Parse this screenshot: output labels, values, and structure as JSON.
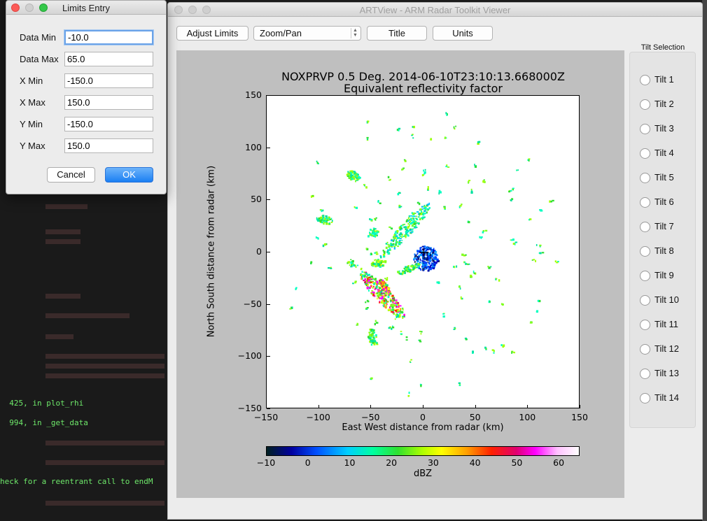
{
  "terminal": {
    "lines": [
      "  425, in plot_rhi",
      "  994, in _get_data",
      "heck for a reentrant call to endM"
    ]
  },
  "main_window": {
    "title": "ARTView - ARM Radar Toolkit Viewer",
    "toolbar": {
      "adjust_limits_label": "Adjust Limits",
      "zoom_select_value": "Zoom/Pan",
      "title_label": "Title",
      "units_label": "Units"
    },
    "tilt_selection": {
      "title": "Tilt Selection",
      "items": [
        "Tilt 1",
        "Tilt 2",
        "Tilt 3",
        "Tilt 4",
        "Tilt 5",
        "Tilt 6",
        "Tilt 7",
        "Tilt 8",
        "Tilt 9",
        "Tilt 10",
        "Tilt 11",
        "Tilt 12",
        "Tilt 13",
        "Tilt 14"
      ]
    }
  },
  "chart_data": {
    "type": "heatmap",
    "title": "NOXPRVP 0.5 Deg. 2014-06-10T23:10:13.668000Z",
    "subtitle": "Equivalent reflectivity factor",
    "xlabel": "East West distance from radar (km)",
    "ylabel": "North South distance from radar (km)",
    "xlim": [
      -150,
      150
    ],
    "ylim": [
      -150,
      150
    ],
    "xticks": [
      "−150",
      "−100",
      "−50",
      "0",
      "50",
      "100",
      "150"
    ],
    "yticks": [
      "150",
      "100",
      "50",
      "0",
      "−50",
      "−100",
      "−150"
    ],
    "colorbar": {
      "label": "dBZ",
      "range": [
        -10,
        65
      ],
      "ticks": [
        "−10",
        "0",
        "10",
        "20",
        "30",
        "40",
        "50",
        "60"
      ]
    },
    "grid": false
  },
  "limits_dialog": {
    "title": "Limits Entry",
    "fields": [
      {
        "label": "Data Min",
        "value": "-10.0"
      },
      {
        "label": "Data Max",
        "value": "65.0"
      },
      {
        "label": "X Min",
        "value": "-150.0"
      },
      {
        "label": "X Max",
        "value": "150.0"
      },
      {
        "label": "Y Min",
        "value": "-150.0"
      },
      {
        "label": "Y Max",
        "value": "150.0"
      }
    ],
    "cancel_label": "Cancel",
    "ok_label": "OK"
  }
}
